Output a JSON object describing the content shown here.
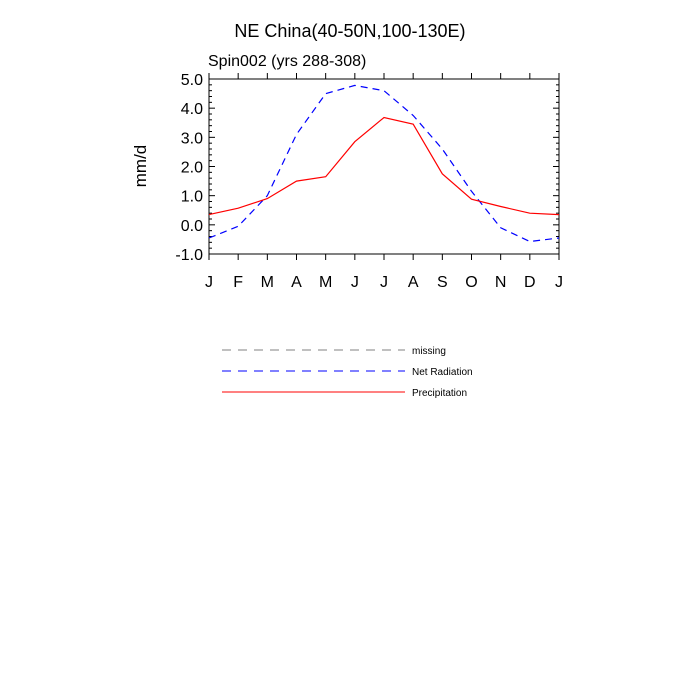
{
  "chart_data": {
    "type": "line",
    "title": "NE China(40-50N,100-130E)",
    "subtitle": "Spin002 (yrs 288-308)",
    "ylabel": "mm/d",
    "xlabel": "",
    "categories": [
      "J",
      "F",
      "M",
      "A",
      "M",
      "J",
      "J",
      "A",
      "S",
      "O",
      "N",
      "D",
      "J"
    ],
    "ylim": [
      -1.0,
      5.0
    ],
    "yticks": [
      "5.0",
      "4.0",
      "3.0",
      "2.0",
      "1.0",
      "0.0",
      "-1.0"
    ],
    "grid": false,
    "legend_position": "bottom",
    "series": [
      {
        "name": "Net Radiation",
        "color": "#0000ff",
        "dash": "dashed",
        "values": [
          -0.45,
          -0.05,
          1.0,
          3.1,
          4.5,
          4.78,
          4.6,
          3.75,
          2.6,
          1.15,
          -0.1,
          -0.57,
          -0.45
        ]
      },
      {
        "name": "Precipitation",
        "color": "#ff0000",
        "dash": "solid",
        "values": [
          0.35,
          0.57,
          0.9,
          1.5,
          1.65,
          2.85,
          3.68,
          3.45,
          1.75,
          0.88,
          0.63,
          0.4,
          0.35
        ]
      }
    ]
  },
  "legend": {
    "items": [
      {
        "label": "missing",
        "color": "#808080",
        "dash": "dashed"
      },
      {
        "label": "Net Radiation",
        "color": "#0000ff",
        "dash": "dashed"
      },
      {
        "label": "Precipitation",
        "color": "#ff0000",
        "dash": "solid"
      }
    ]
  }
}
